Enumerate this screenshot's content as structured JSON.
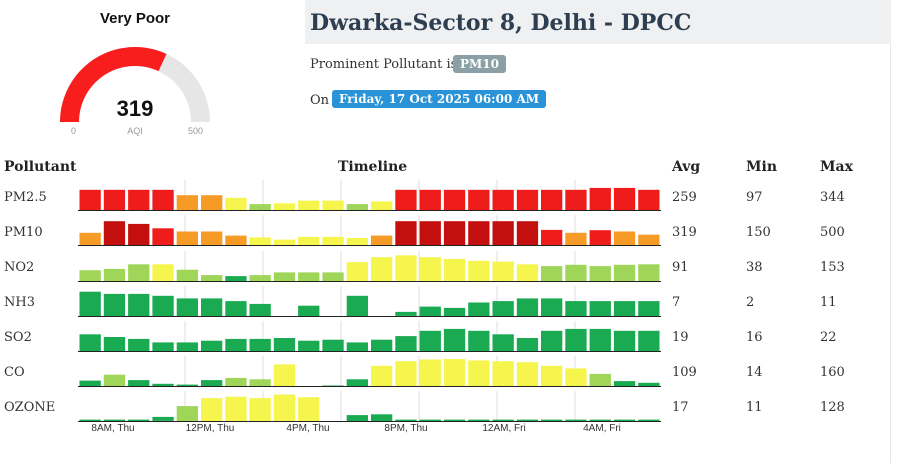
{
  "gauge": {
    "category": "Very Poor",
    "value": 319,
    "unit": "AQI",
    "min": "0",
    "max": "500",
    "fill_color": "#f91e1e",
    "track_color": "#e6e6e6"
  },
  "station": {
    "title": "Dwarka-Sector 8, Delhi - DPCC",
    "prominent_label": "Prominent Pollutant is",
    "prominent_value": "PM10",
    "on_label": "On",
    "datetime": "Friday, 17 Oct 2025 06:00 AM"
  },
  "table": {
    "headers": {
      "pollutant": "Pollutant",
      "timeline": "Timeline",
      "avg": "Avg",
      "min": "Min",
      "max": "Max"
    },
    "rows": [
      {
        "name": "PM2.5",
        "avg": "259",
        "min": "97",
        "max": "344",
        "bars": [
          {
            "h": 0.75,
            "c": "#ef1c1c"
          },
          {
            "h": 0.75,
            "c": "#ef1c1c"
          },
          {
            "h": 0.75,
            "c": "#ef1c1c"
          },
          {
            "h": 0.75,
            "c": "#ef1c1c"
          },
          {
            "h": 0.55,
            "c": "#f79b27"
          },
          {
            "h": 0.55,
            "c": "#f79b27"
          },
          {
            "h": 0.45,
            "c": "#f6f54d"
          },
          {
            "h": 0.22,
            "c": "#9fd65a"
          },
          {
            "h": 0.25,
            "c": "#f6f54d"
          },
          {
            "h": 0.35,
            "c": "#f6f54d"
          },
          {
            "h": 0.35,
            "c": "#f6f54d"
          },
          {
            "h": 0.22,
            "c": "#9fd65a"
          },
          {
            "h": 0.32,
            "c": "#f6f54d"
          },
          {
            "h": 0.75,
            "c": "#ef1c1c"
          },
          {
            "h": 0.75,
            "c": "#ef1c1c"
          },
          {
            "h": 0.75,
            "c": "#ef1c1c"
          },
          {
            "h": 0.75,
            "c": "#ef1c1c"
          },
          {
            "h": 0.75,
            "c": "#ef1c1c"
          },
          {
            "h": 0.75,
            "c": "#ef1c1c"
          },
          {
            "h": 0.75,
            "c": "#ef1c1c"
          },
          {
            "h": 0.75,
            "c": "#ef1c1c"
          },
          {
            "h": 0.82,
            "c": "#ef1c1c"
          },
          {
            "h": 0.82,
            "c": "#ef1c1c"
          },
          {
            "h": 0.75,
            "c": "#ef1c1c"
          }
        ]
      },
      {
        "name": "PM10",
        "avg": "319",
        "min": "150",
        "max": "500",
        "bars": [
          {
            "h": 0.45,
            "c": "#f79b27"
          },
          {
            "h": 0.88,
            "c": "#c40f0f"
          },
          {
            "h": 0.78,
            "c": "#c40f0f"
          },
          {
            "h": 0.62,
            "c": "#ef1c1c"
          },
          {
            "h": 0.5,
            "c": "#f79b27"
          },
          {
            "h": 0.5,
            "c": "#f79b27"
          },
          {
            "h": 0.35,
            "c": "#f79b27"
          },
          {
            "h": 0.28,
            "c": "#f6f54d"
          },
          {
            "h": 0.2,
            "c": "#f6f54d"
          },
          {
            "h": 0.3,
            "c": "#f6f54d"
          },
          {
            "h": 0.3,
            "c": "#f6f54d"
          },
          {
            "h": 0.26,
            "c": "#f6f54d"
          },
          {
            "h": 0.35,
            "c": "#f79b27"
          },
          {
            "h": 0.88,
            "c": "#c40f0f"
          },
          {
            "h": 0.88,
            "c": "#c40f0f"
          },
          {
            "h": 0.88,
            "c": "#c40f0f"
          },
          {
            "h": 0.88,
            "c": "#c40f0f"
          },
          {
            "h": 0.88,
            "c": "#c40f0f"
          },
          {
            "h": 0.88,
            "c": "#c40f0f"
          },
          {
            "h": 0.56,
            "c": "#ef1c1c"
          },
          {
            "h": 0.45,
            "c": "#f79b27"
          },
          {
            "h": 0.55,
            "c": "#ef1c1c"
          },
          {
            "h": 0.5,
            "c": "#f79b27"
          },
          {
            "h": 0.38,
            "c": "#f79b27"
          }
        ]
      },
      {
        "name": "NO2",
        "avg": "91",
        "min": "38",
        "max": "153",
        "bars": [
          {
            "h": 0.4,
            "c": "#9fd65a"
          },
          {
            "h": 0.45,
            "c": "#9fd65a"
          },
          {
            "h": 0.62,
            "c": "#9fd65a"
          },
          {
            "h": 0.62,
            "c": "#f6f54d"
          },
          {
            "h": 0.42,
            "c": "#9fd65a"
          },
          {
            "h": 0.22,
            "c": "#9fd65a"
          },
          {
            "h": 0.18,
            "c": "#1aaa52"
          },
          {
            "h": 0.22,
            "c": "#9fd65a"
          },
          {
            "h": 0.32,
            "c": "#9fd65a"
          },
          {
            "h": 0.32,
            "c": "#9fd65a"
          },
          {
            "h": 0.32,
            "c": "#9fd65a"
          },
          {
            "h": 0.7,
            "c": "#f6f54d"
          },
          {
            "h": 0.88,
            "c": "#f6f54d"
          },
          {
            "h": 0.95,
            "c": "#f6f54d"
          },
          {
            "h": 0.88,
            "c": "#f6f54d"
          },
          {
            "h": 0.82,
            "c": "#f6f54d"
          },
          {
            "h": 0.75,
            "c": "#f6f54d"
          },
          {
            "h": 0.72,
            "c": "#f6f54d"
          },
          {
            "h": 0.62,
            "c": "#f6f54d"
          },
          {
            "h": 0.55,
            "c": "#9fd65a"
          },
          {
            "h": 0.6,
            "c": "#9fd65a"
          },
          {
            "h": 0.55,
            "c": "#9fd65a"
          },
          {
            "h": 0.6,
            "c": "#9fd65a"
          },
          {
            "h": 0.62,
            "c": "#9fd65a"
          }
        ]
      },
      {
        "name": "NH3",
        "avg": "7",
        "min": "2",
        "max": "11",
        "bars": [
          {
            "h": 0.9,
            "c": "#1aaa52"
          },
          {
            "h": 0.82,
            "c": "#1aaa52"
          },
          {
            "h": 0.82,
            "c": "#1aaa52"
          },
          {
            "h": 0.75,
            "c": "#1aaa52"
          },
          {
            "h": 0.65,
            "c": "#1aaa52"
          },
          {
            "h": 0.65,
            "c": "#1aaa52"
          },
          {
            "h": 0.55,
            "c": "#1aaa52"
          },
          {
            "h": 0.45,
            "c": "#1aaa52"
          },
          {
            "h": 0,
            "c": "#1aaa52"
          },
          {
            "h": 0.38,
            "c": "#1aaa52"
          },
          {
            "h": 0,
            "c": "#1aaa52"
          },
          {
            "h": 0.75,
            "c": "#1aaa52"
          },
          {
            "h": 0,
            "c": "#1aaa52"
          },
          {
            "h": 0.15,
            "c": "#1aaa52"
          },
          {
            "h": 0.35,
            "c": "#1aaa52"
          },
          {
            "h": 0.3,
            "c": "#1aaa52"
          },
          {
            "h": 0.5,
            "c": "#1aaa52"
          },
          {
            "h": 0.55,
            "c": "#1aaa52"
          },
          {
            "h": 0.65,
            "c": "#1aaa52"
          },
          {
            "h": 0.65,
            "c": "#1aaa52"
          },
          {
            "h": 0.55,
            "c": "#1aaa52"
          },
          {
            "h": 0.55,
            "c": "#1aaa52"
          },
          {
            "h": 0.55,
            "c": "#1aaa52"
          },
          {
            "h": 0.55,
            "c": "#1aaa52"
          }
        ]
      },
      {
        "name": "SO2",
        "avg": "19",
        "min": "16",
        "max": "22",
        "bars": [
          {
            "h": 0.62,
            "c": "#1aaa52"
          },
          {
            "h": 0.52,
            "c": "#1aaa52"
          },
          {
            "h": 0.45,
            "c": "#1aaa52"
          },
          {
            "h": 0.32,
            "c": "#1aaa52"
          },
          {
            "h": 0.32,
            "c": "#1aaa52"
          },
          {
            "h": 0.38,
            "c": "#1aaa52"
          },
          {
            "h": 0.45,
            "c": "#1aaa52"
          },
          {
            "h": 0.45,
            "c": "#1aaa52"
          },
          {
            "h": 0.48,
            "c": "#1aaa52"
          },
          {
            "h": 0.38,
            "c": "#1aaa52"
          },
          {
            "h": 0.42,
            "c": "#1aaa52"
          },
          {
            "h": 0.32,
            "c": "#1aaa52"
          },
          {
            "h": 0.42,
            "c": "#1aaa52"
          },
          {
            "h": 0.55,
            "c": "#1aaa52"
          },
          {
            "h": 0.75,
            "c": "#1aaa52"
          },
          {
            "h": 0.82,
            "c": "#1aaa52"
          },
          {
            "h": 0.75,
            "c": "#1aaa52"
          },
          {
            "h": 0.62,
            "c": "#1aaa52"
          },
          {
            "h": 0.48,
            "c": "#1aaa52"
          },
          {
            "h": 0.75,
            "c": "#1aaa52"
          },
          {
            "h": 0.82,
            "c": "#1aaa52"
          },
          {
            "h": 0.82,
            "c": "#1aaa52"
          },
          {
            "h": 0.75,
            "c": "#1aaa52"
          },
          {
            "h": 0.75,
            "c": "#1aaa52"
          }
        ]
      },
      {
        "name": "CO",
        "avg": "109",
        "min": "14",
        "max": "160",
        "bars": [
          {
            "h": 0.2,
            "c": "#1aaa52"
          },
          {
            "h": 0.42,
            "c": "#9fd65a"
          },
          {
            "h": 0.22,
            "c": "#1aaa52"
          },
          {
            "h": 0.08,
            "c": "#1aaa52"
          },
          {
            "h": 0.05,
            "c": "#1aaa52"
          },
          {
            "h": 0.22,
            "c": "#1aaa52"
          },
          {
            "h": 0.3,
            "c": "#9fd65a"
          },
          {
            "h": 0.25,
            "c": "#9fd65a"
          },
          {
            "h": 0.8,
            "c": "#f6f54d"
          },
          {
            "h": 0,
            "c": "#1aaa52"
          },
          {
            "h": 0.02,
            "c": "#1aaa52"
          },
          {
            "h": 0.25,
            "c": "#1aaa52"
          },
          {
            "h": 0.75,
            "c": "#f6f54d"
          },
          {
            "h": 0.92,
            "c": "#f6f54d"
          },
          {
            "h": 0.98,
            "c": "#f6f54d"
          },
          {
            "h": 1,
            "c": "#f6f54d"
          },
          {
            "h": 0.95,
            "c": "#f6f54d"
          },
          {
            "h": 0.92,
            "c": "#f6f54d"
          },
          {
            "h": 0.88,
            "c": "#f6f54d"
          },
          {
            "h": 0.75,
            "c": "#f6f54d"
          },
          {
            "h": 0.65,
            "c": "#f6f54d"
          },
          {
            "h": 0.45,
            "c": "#9fd65a"
          },
          {
            "h": 0.18,
            "c": "#1aaa52"
          },
          {
            "h": 0.12,
            "c": "#1aaa52"
          }
        ]
      },
      {
        "name": "OZONE",
        "avg": "17",
        "min": "11",
        "max": "128",
        "bars": [
          {
            "h": 0.05,
            "c": "#1aaa52"
          },
          {
            "h": 0.05,
            "c": "#1aaa52"
          },
          {
            "h": 0.05,
            "c": "#1aaa52"
          },
          {
            "h": 0.15,
            "c": "#1aaa52"
          },
          {
            "h": 0.55,
            "c": "#9fd65a"
          },
          {
            "h": 0.85,
            "c": "#f6f54d"
          },
          {
            "h": 0.9,
            "c": "#f6f54d"
          },
          {
            "h": 0.85,
            "c": "#f6f54d"
          },
          {
            "h": 0.98,
            "c": "#f6f54d"
          },
          {
            "h": 0.88,
            "c": "#f6f54d"
          },
          {
            "h": 0,
            "c": "#1aaa52"
          },
          {
            "h": 0.22,
            "c": "#1aaa52"
          },
          {
            "h": 0.25,
            "c": "#1aaa52"
          },
          {
            "h": 0.05,
            "c": "#1aaa52"
          },
          {
            "h": 0.05,
            "c": "#1aaa52"
          },
          {
            "h": 0.05,
            "c": "#1aaa52"
          },
          {
            "h": 0.05,
            "c": "#1aaa52"
          },
          {
            "h": 0.05,
            "c": "#1aaa52"
          },
          {
            "h": 0.05,
            "c": "#1aaa52"
          },
          {
            "h": 0.05,
            "c": "#1aaa52"
          },
          {
            "h": 0.05,
            "c": "#1aaa52"
          },
          {
            "h": 0.05,
            "c": "#1aaa52"
          },
          {
            "h": 0.05,
            "c": "#1aaa52"
          },
          {
            "h": 0.05,
            "c": "#1aaa52"
          }
        ]
      }
    ]
  },
  "timeline_ticks": [
    "8AM, Thu",
    "12PM, Thu",
    "4PM, Thu",
    "8PM, Thu",
    "12AM, Fri",
    "4AM, Fri"
  ]
}
